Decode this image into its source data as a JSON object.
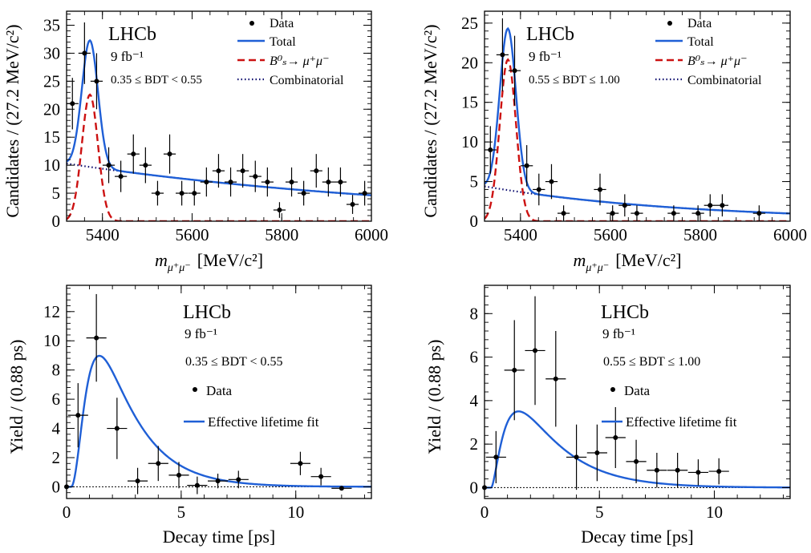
{
  "chart_data": [
    {
      "type": "scatter",
      "experiment": "LHCb",
      "luminosity": "9 fb⁻¹",
      "category": "0.35 ≤ BDT < 0.55",
      "xlabel_main": "m",
      "xlabel_sub": "μ⁺μ⁻",
      "xlabel_unit": "[MeV/c²]",
      "ylabel": "Candidates / (27.2 MeV/c²)",
      "xlim": [
        5320,
        6000
      ],
      "ylim": [
        0,
        37.5
      ],
      "xticks": [
        5400,
        5600,
        5800,
        6000
      ],
      "yticks": [
        0,
        5,
        10,
        15,
        20,
        25,
        30,
        35
      ],
      "legend": [
        "Data",
        "Total",
        "B⁰ₛ→ μ⁺μ⁻",
        "Combinatorial"
      ],
      "colors": {
        "total": "#1f5fd6",
        "signal": "#cc1111",
        "combinatorial": "#0a0a6e"
      },
      "points": [
        {
          "x": 5333,
          "y": 21,
          "ey": 4.6
        },
        {
          "x": 5360,
          "y": 30,
          "ey": 5.5
        },
        {
          "x": 5387,
          "y": 25,
          "ey": 5.0
        },
        {
          "x": 5414,
          "y": 10,
          "ey": 3.2
        },
        {
          "x": 5441,
          "y": 8,
          "ey": 2.8
        },
        {
          "x": 5469,
          "y": 12,
          "ey": 3.5
        },
        {
          "x": 5496,
          "y": 10,
          "ey": 3.2
        },
        {
          "x": 5523,
          "y": 5,
          "ey": 2.2
        },
        {
          "x": 5550,
          "y": 12,
          "ey": 3.5
        },
        {
          "x": 5577,
          "y": 5,
          "ey": 2.2
        },
        {
          "x": 5605,
          "y": 5,
          "ey": 2.2
        },
        {
          "x": 5632,
          "y": 7,
          "ey": 2.6
        },
        {
          "x": 5659,
          "y": 9,
          "ey": 3.0
        },
        {
          "x": 5686,
          "y": 7,
          "ey": 2.6
        },
        {
          "x": 5713,
          "y": 9,
          "ey": 3.0
        },
        {
          "x": 5741,
          "y": 8,
          "ey": 2.8
        },
        {
          "x": 5768,
          "y": 7,
          "ey": 2.6
        },
        {
          "x": 5795,
          "y": 2,
          "ey": 1.4
        },
        {
          "x": 5822,
          "y": 7,
          "ey": 2.6
        },
        {
          "x": 5849,
          "y": 5,
          "ey": 2.2
        },
        {
          "x": 5877,
          "y": 9,
          "ey": 3.0
        },
        {
          "x": 5904,
          "y": 7,
          "ey": 2.6
        },
        {
          "x": 5931,
          "y": 7,
          "ey": 2.6
        },
        {
          "x": 5958,
          "y": 3,
          "ey": 1.7
        },
        {
          "x": 5985,
          "y": 5,
          "ey": 2.2
        }
      ],
      "model": {
        "combinatorial": {
          "a": 10.3,
          "tau": 850
        },
        "signal": {
          "amp": 22.6,
          "mean": 5372,
          "sigma": 18
        }
      }
    },
    {
      "type": "scatter",
      "experiment": "LHCb",
      "luminosity": "9 fb⁻¹",
      "category": "0.55 ≤ BDT ≤ 1.00",
      "xlabel_main": "m",
      "xlabel_sub": "μ⁺μ⁻",
      "xlabel_unit": "[MeV/c²]",
      "ylabel": "Candidates / (27.2 MeV/c²)",
      "xlim": [
        5320,
        6000
      ],
      "ylim": [
        0,
        26.5
      ],
      "xticks": [
        5400,
        5600,
        5800,
        6000
      ],
      "yticks": [
        0,
        5,
        10,
        15,
        20,
        25
      ],
      "legend": [
        "Data",
        "Total",
        "B⁰ₛ→ μ⁺μ⁻",
        "Combinatorial"
      ],
      "colors": {
        "total": "#1f5fd6",
        "signal": "#cc1111",
        "combinatorial": "#0a0a6e"
      },
      "points": [
        {
          "x": 5333,
          "y": 9,
          "ey": 3.0
        },
        {
          "x": 5360,
          "y": 21,
          "ey": 4.6
        },
        {
          "x": 5387,
          "y": 19,
          "ey": 4.4
        },
        {
          "x": 5414,
          "y": 7,
          "ey": 2.6
        },
        {
          "x": 5441,
          "y": 4,
          "ey": 2.0
        },
        {
          "x": 5469,
          "y": 5,
          "ey": 2.2
        },
        {
          "x": 5496,
          "y": 1,
          "ey": 1.0
        },
        {
          "x": 5577,
          "y": 4,
          "ey": 2.0
        },
        {
          "x": 5605,
          "y": 1,
          "ey": 1.0
        },
        {
          "x": 5632,
          "y": 2,
          "ey": 1.4
        },
        {
          "x": 5659,
          "y": 1,
          "ey": 1.0
        },
        {
          "x": 5741,
          "y": 1,
          "ey": 1.0
        },
        {
          "x": 5795,
          "y": 1,
          "ey": 1.0
        },
        {
          "x": 5822,
          "y": 2,
          "ey": 1.4
        },
        {
          "x": 5849,
          "y": 2,
          "ey": 1.4
        },
        {
          "x": 5931,
          "y": 1,
          "ey": 1.0
        }
      ],
      "model": {
        "combinatorial": {
          "a": 4.4,
          "tau": 450
        },
        "signal": {
          "amp": 20.4,
          "mean": 5372,
          "sigma": 18
        }
      }
    },
    {
      "type": "scatter",
      "experiment": "LHCb",
      "luminosity": "9 fb⁻¹",
      "category": "0.35 ≤ BDT < 0.55",
      "xlabel": "Decay time [ps]",
      "ylabel": "Yield / (0.88 ps)",
      "xlim": [
        0,
        13.3
      ],
      "ylim": [
        -0.8,
        13.8
      ],
      "xticks": [
        0,
        5,
        10
      ],
      "yticks": [
        0,
        2,
        4,
        6,
        8,
        10,
        12
      ],
      "legend": [
        "Data",
        "Effective lifetime fit"
      ],
      "colors": {
        "fit": "#1f5fd6"
      },
      "points": [
        {
          "x": 0.0,
          "y": 0.0,
          "ey": 0,
          "ex": 0
        },
        {
          "x": 0.5,
          "y": 4.9,
          "ey": 2.2,
          "ex": 0.44
        },
        {
          "x": 1.3,
          "y": 10.2,
          "ey": 3.0,
          "ex": 0.44
        },
        {
          "x": 2.2,
          "y": 4.0,
          "ey": 2.1,
          "ex": 0.44
        },
        {
          "x": 3.1,
          "y": 0.4,
          "ey": 0.9,
          "ex": 0.44
        },
        {
          "x": 4.0,
          "y": 1.6,
          "ey": 1.2,
          "ex": 0.44
        },
        {
          "x": 4.9,
          "y": 0.8,
          "ey": 0.9,
          "ex": 0.44
        },
        {
          "x": 5.7,
          "y": 0.1,
          "ey": 0.6,
          "ex": 0.44
        },
        {
          "x": 6.6,
          "y": 0.4,
          "ey": 0.5,
          "ex": 0.44
        },
        {
          "x": 7.5,
          "y": 0.5,
          "ey": 0.6,
          "ex": 0.44
        },
        {
          "x": 10.2,
          "y": 1.6,
          "ey": 0.8,
          "ex": 0.44
        },
        {
          "x": 11.1,
          "y": 0.7,
          "ey": 0.6,
          "ex": 0.44
        },
        {
          "x": 12.0,
          "y": -0.1,
          "ey": 0,
          "ex": 0.44
        }
      ],
      "model": {
        "norm": 37.5,
        "tau": 1.55,
        "t0": 0.2,
        "p": 2
      }
    },
    {
      "type": "scatter",
      "experiment": "LHCb",
      "luminosity": "9 fb⁻¹",
      "category": "0.55 ≤ BDT ≤ 1.00",
      "xlabel": "Decay time [ps]",
      "ylabel": "Yield / (0.88 ps)",
      "xlim": [
        0,
        13.3
      ],
      "ylim": [
        -0.5,
        9.3
      ],
      "xticks": [
        0,
        5,
        10
      ],
      "yticks": [
        0,
        2,
        4,
        6,
        8
      ],
      "legend": [
        "Data",
        "Effective lifetime fit"
      ],
      "colors": {
        "fit": "#1f5fd6"
      },
      "points": [
        {
          "x": 0.0,
          "y": 0.0,
          "ey": 0,
          "ex": 0
        },
        {
          "x": 0.5,
          "y": 1.4,
          "ey": 1.2,
          "ex": 0.44
        },
        {
          "x": 1.3,
          "y": 5.4,
          "ey": 2.3,
          "ex": 0.44
        },
        {
          "x": 2.2,
          "y": 6.3,
          "ey": 2.5,
          "ex": 0.44
        },
        {
          "x": 3.1,
          "y": 5.0,
          "ey": 2.2,
          "ex": 0.44
        },
        {
          "x": 4.0,
          "y": 1.4,
          "ey": 1.5,
          "ex": 0.44
        },
        {
          "x": 4.9,
          "y": 1.6,
          "ey": 1.3,
          "ex": 0.44
        },
        {
          "x": 5.7,
          "y": 2.3,
          "ey": 1.4,
          "ex": 0.44
        },
        {
          "x": 6.6,
          "y": 1.2,
          "ey": 1.0,
          "ex": 0.44
        },
        {
          "x": 7.5,
          "y": 0.8,
          "ey": 0.8,
          "ex": 0.44
        },
        {
          "x": 8.4,
          "y": 0.8,
          "ey": 0.8,
          "ex": 0.44
        },
        {
          "x": 9.3,
          "y": 0.7,
          "ey": 0.6,
          "ex": 0.44
        },
        {
          "x": 10.2,
          "y": 0.75,
          "ey": 0.6,
          "ex": 0.44
        }
      ],
      "model": {
        "norm": 14.2,
        "tau": 1.8,
        "t0": 0.3,
        "p": 1.5
      }
    }
  ]
}
